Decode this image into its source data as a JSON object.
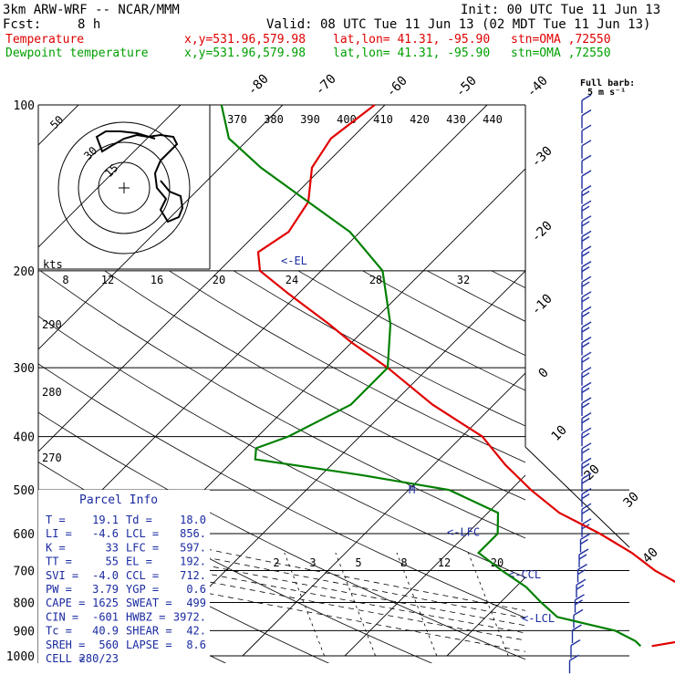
{
  "header": {
    "model": "3km ARW-WRF -- NCAR/MMM",
    "init": "Init: 00 UTC Tue 11 Jun 13",
    "fcst_label": "Fcst:",
    "fcst_value": "8 h",
    "valid": "Valid: 08 UTC Tue 11 Jun 13 (02 MDT Tue 11 Jun 13)",
    "temp_line": {
      "label": "Temperature",
      "xy": "x,y=531.96,579.98",
      "latlon": "lat,lon= 41.31, -95.90",
      "stn": "stn=OMA ,72550",
      "color": "#e00000"
    },
    "dew_line": {
      "label": "Dewpoint temperature",
      "xy": "x,y=531.96,579.98",
      "latlon": "lat,lon= 41.31, -95.90",
      "stn": "stn=OMA ,72550",
      "color": "#00a000"
    }
  },
  "colors": {
    "temperature": "#e00000",
    "dewpoint": "#008000",
    "wind_barbs": "#2030a0",
    "annotations": "#1a2aa0",
    "grid": "#000000"
  },
  "chart_data": {
    "type": "line",
    "chart_kind": "skew-T log-P sounding",
    "pressure_levels": [
      100,
      200,
      300,
      400,
      500,
      600,
      700,
      800,
      900,
      1000
    ],
    "isotherm_labels": [
      "-80",
      "-70",
      "-60",
      "-50",
      "-40",
      "-30",
      "-20",
      "-10",
      "0",
      "10",
      "20",
      "30",
      "40"
    ],
    "theta_labels": [
      "370",
      "380",
      "390",
      "400",
      "410",
      "420",
      "430",
      "440"
    ],
    "theta_e_labels": [
      "290",
      "280",
      "270"
    ],
    "mixing_ratio_labels": [
      "2",
      "3",
      "5",
      "8",
      "12",
      "20"
    ],
    "wind_axis": {
      "label": "kts",
      "ticks": [
        "8",
        "12",
        "16",
        "20",
        "24",
        "28",
        "32"
      ]
    },
    "hodograph_rings": [
      "50",
      "30",
      "15"
    ],
    "barb_legend": {
      "title": "Full barb:",
      "value": "5 m s⁻¹"
    },
    "levels_markers": [
      {
        "label": "<-EL",
        "p": 192
      },
      {
        "label": "<-LFC",
        "p": 597
      },
      {
        "label": "<-CCL",
        "p": 712
      },
      {
        "label": "<-LCL",
        "p": 856
      },
      {
        "label": "M",
        "p": 500
      }
    ],
    "series": [
      {
        "name": "Temperature",
        "color": "#e00000",
        "points": [
          [
            960,
            19.1
          ],
          [
            920,
            24
          ],
          [
            880,
            26
          ],
          [
            850,
            24
          ],
          [
            800,
            20
          ],
          [
            750,
            16.5
          ],
          [
            700,
            12
          ],
          [
            650,
            8
          ],
          [
            600,
            3
          ],
          [
            550,
            -3
          ],
          [
            500,
            -8
          ],
          [
            450,
            -13
          ],
          [
            400,
            -18
          ],
          [
            350,
            -26
          ],
          [
            300,
            -34
          ],
          [
            270,
            -40
          ],
          [
            250,
            -44
          ],
          [
            220,
            -51
          ],
          [
            200,
            -56
          ],
          [
            185,
            -58
          ],
          [
            170,
            -57
          ],
          [
            150,
            -58
          ],
          [
            130,
            -61
          ],
          [
            115,
            -62
          ],
          [
            100,
            -61
          ]
        ]
      },
      {
        "name": "Dewpoint temperature",
        "color": "#008000",
        "points": [
          [
            960,
            18.0
          ],
          [
            940,
            17
          ],
          [
            900,
            14
          ],
          [
            850,
            7
          ],
          [
            800,
            4
          ],
          [
            750,
            1
          ],
          [
            700,
            -3
          ],
          [
            650,
            -7
          ],
          [
            600,
            -7
          ],
          [
            550,
            -9
          ],
          [
            500,
            -16
          ],
          [
            470,
            -26
          ],
          [
            440,
            -38
          ],
          [
            420,
            -39
          ],
          [
            400,
            -37
          ],
          [
            350,
            -34
          ],
          [
            300,
            -34
          ],
          [
            250,
            -38
          ],
          [
            200,
            -44
          ],
          [
            170,
            -51
          ],
          [
            150,
            -58
          ],
          [
            130,
            -66
          ],
          [
            115,
            -72
          ],
          [
            100,
            -76
          ]
        ]
      }
    ]
  },
  "parcel_info": {
    "title": "Parcel Info",
    "rows": [
      [
        "T",
        "19.1",
        "Td",
        "18.0"
      ],
      [
        "LI",
        "-4.6",
        "LCL",
        "856."
      ],
      [
        "K",
        "33",
        "LFC",
        "597."
      ],
      [
        "TT",
        "55",
        "EL",
        "192."
      ],
      [
        "SVI",
        "-4.0",
        "CCL",
        "712."
      ],
      [
        "PW",
        "3.79",
        "YGP",
        "0.6"
      ],
      [
        "CAPE",
        "1625",
        "SWEAT",
        "499"
      ],
      [
        "CIN",
        "-601",
        "HWBZ",
        "3972."
      ],
      [
        "Tc",
        "40.9",
        "SHEAR",
        "42."
      ],
      [
        "SREH",
        "560",
        "LAPSE",
        "8.6"
      ],
      [
        "CELL",
        "280/23",
        "",
        ""
      ]
    ]
  }
}
